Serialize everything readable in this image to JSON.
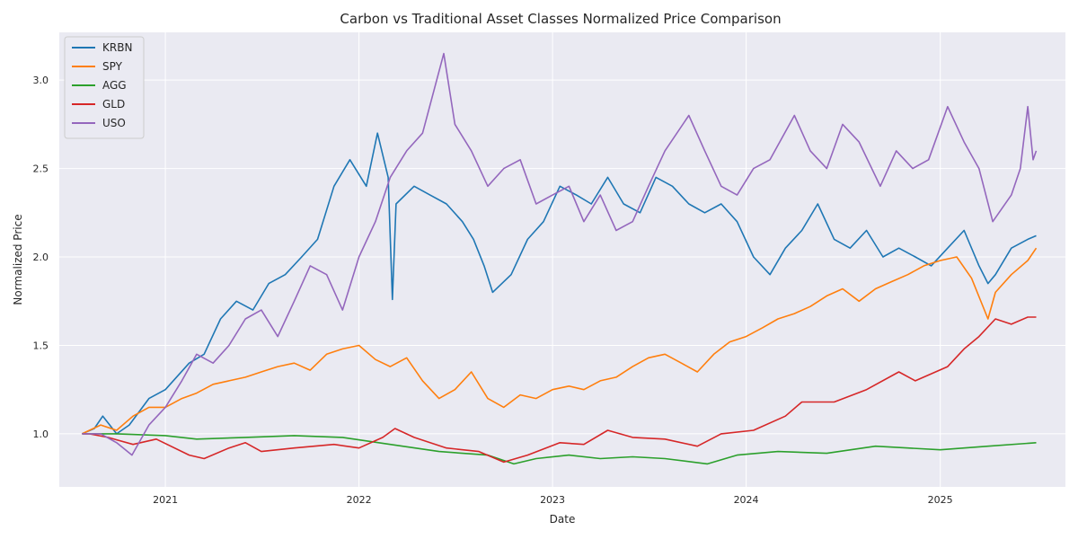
{
  "chart_data": {
    "type": "line",
    "title": "Carbon vs Traditional Asset Classes Normalized Price Comparison",
    "xlabel": "Date",
    "ylabel": "Normalized Price",
    "x_ticks": [
      "2021",
      "2022",
      "2023",
      "2024",
      "2025"
    ],
    "y_ticks": [
      "1.0",
      "1.5",
      "2.0",
      "2.5",
      "3.0"
    ],
    "xlim": [
      "2020-06-15",
      "2025-08-25"
    ],
    "ylim": [
      0.7,
      3.27
    ],
    "grid": true,
    "legend_position": "top-left",
    "series": [
      {
        "name": "KRBN",
        "color": "#1f77b4",
        "points": [
          [
            "2020-07-28",
            1.0
          ],
          [
            "2020-08-20",
            1.03
          ],
          [
            "2020-09-05",
            1.1
          ],
          [
            "2020-10-01",
            1.0
          ],
          [
            "2020-10-25",
            1.05
          ],
          [
            "2020-12-01",
            1.2
          ],
          [
            "2021-01-01",
            1.25
          ],
          [
            "2021-02-15",
            1.4
          ],
          [
            "2021-03-15",
            1.45
          ],
          [
            "2021-04-15",
            1.65
          ],
          [
            "2021-05-15",
            1.75
          ],
          [
            "2021-06-15",
            1.7
          ],
          [
            "2021-07-15",
            1.85
          ],
          [
            "2021-08-15",
            1.9
          ],
          [
            "2021-09-15",
            2.0
          ],
          [
            "2021-10-15",
            2.1
          ],
          [
            "2021-11-15",
            2.4
          ],
          [
            "2021-12-15",
            2.55
          ],
          [
            "2022-01-15",
            2.4
          ],
          [
            "2022-02-05",
            2.7
          ],
          [
            "2022-02-25",
            2.45
          ],
          [
            "2022-03-05",
            1.76
          ],
          [
            "2022-03-12",
            2.3
          ],
          [
            "2022-04-15",
            2.4
          ],
          [
            "2022-05-15",
            2.35
          ],
          [
            "2022-06-15",
            2.3
          ],
          [
            "2022-07-15",
            2.2
          ],
          [
            "2022-08-05",
            2.1
          ],
          [
            "2022-08-25",
            1.95
          ],
          [
            "2022-09-10",
            1.8
          ],
          [
            "2022-10-15",
            1.9
          ],
          [
            "2022-11-15",
            2.1
          ],
          [
            "2022-12-15",
            2.2
          ],
          [
            "2023-01-15",
            2.4
          ],
          [
            "2023-02-15",
            2.35
          ],
          [
            "2023-03-15",
            2.3
          ],
          [
            "2023-04-15",
            2.45
          ],
          [
            "2023-05-15",
            2.3
          ],
          [
            "2023-06-15",
            2.25
          ],
          [
            "2023-07-15",
            2.45
          ],
          [
            "2023-08-15",
            2.4
          ],
          [
            "2023-09-15",
            2.3
          ],
          [
            "2023-10-15",
            2.25
          ],
          [
            "2023-11-15",
            2.3
          ],
          [
            "2023-12-15",
            2.2
          ],
          [
            "2024-01-15",
            2.0
          ],
          [
            "2024-02-15",
            1.9
          ],
          [
            "2024-03-15",
            2.05
          ],
          [
            "2024-04-15",
            2.15
          ],
          [
            "2024-05-15",
            2.3
          ],
          [
            "2024-06-15",
            2.1
          ],
          [
            "2024-07-15",
            2.05
          ],
          [
            "2024-08-15",
            2.15
          ],
          [
            "2024-09-15",
            2.0
          ],
          [
            "2024-10-15",
            2.05
          ],
          [
            "2024-11-15",
            2.0
          ],
          [
            "2024-12-15",
            1.95
          ],
          [
            "2025-01-15",
            2.05
          ],
          [
            "2025-02-15",
            2.15
          ],
          [
            "2025-03-15",
            1.95
          ],
          [
            "2025-04-01",
            1.85
          ],
          [
            "2025-04-15",
            1.9
          ],
          [
            "2025-05-15",
            2.05
          ],
          [
            "2025-06-15",
            2.1
          ],
          [
            "2025-07-01",
            2.12
          ]
        ]
      },
      {
        "name": "SPY",
        "color": "#ff7f0e",
        "points": [
          [
            "2020-07-28",
            1.0
          ],
          [
            "2020-09-01",
            1.05
          ],
          [
            "2020-10-01",
            1.02
          ],
          [
            "2020-11-01",
            1.1
          ],
          [
            "2020-12-01",
            1.15
          ],
          [
            "2021-01-01",
            1.15
          ],
          [
            "2021-02-01",
            1.2
          ],
          [
            "2021-03-01",
            1.23
          ],
          [
            "2021-04-01",
            1.28
          ],
          [
            "2021-05-01",
            1.3
          ],
          [
            "2021-06-01",
            1.32
          ],
          [
            "2021-07-01",
            1.35
          ],
          [
            "2021-08-01",
            1.38
          ],
          [
            "2021-09-01",
            1.4
          ],
          [
            "2021-10-01",
            1.36
          ],
          [
            "2021-11-01",
            1.45
          ],
          [
            "2021-12-01",
            1.48
          ],
          [
            "2022-01-01",
            1.5
          ],
          [
            "2022-02-01",
            1.42
          ],
          [
            "2022-03-01",
            1.38
          ],
          [
            "2022-04-01",
            1.43
          ],
          [
            "2022-05-01",
            1.3
          ],
          [
            "2022-06-01",
            1.2
          ],
          [
            "2022-07-01",
            1.25
          ],
          [
            "2022-08-01",
            1.35
          ],
          [
            "2022-09-01",
            1.2
          ],
          [
            "2022-10-01",
            1.15
          ],
          [
            "2022-11-01",
            1.22
          ],
          [
            "2022-12-01",
            1.2
          ],
          [
            "2023-01-01",
            1.25
          ],
          [
            "2023-02-01",
            1.27
          ],
          [
            "2023-03-01",
            1.25
          ],
          [
            "2023-04-01",
            1.3
          ],
          [
            "2023-05-01",
            1.32
          ],
          [
            "2023-06-01",
            1.38
          ],
          [
            "2023-07-01",
            1.43
          ],
          [
            "2023-08-01",
            1.45
          ],
          [
            "2023-09-01",
            1.4
          ],
          [
            "2023-10-01",
            1.35
          ],
          [
            "2023-11-01",
            1.45
          ],
          [
            "2023-12-01",
            1.52
          ],
          [
            "2024-01-01",
            1.55
          ],
          [
            "2024-02-01",
            1.6
          ],
          [
            "2024-03-01",
            1.65
          ],
          [
            "2024-04-01",
            1.68
          ],
          [
            "2024-05-01",
            1.72
          ],
          [
            "2024-06-01",
            1.78
          ],
          [
            "2024-07-01",
            1.82
          ],
          [
            "2024-08-01",
            1.75
          ],
          [
            "2024-09-01",
            1.82
          ],
          [
            "2024-10-01",
            1.86
          ],
          [
            "2024-11-01",
            1.9
          ],
          [
            "2024-12-01",
            1.95
          ],
          [
            "2025-01-01",
            1.98
          ],
          [
            "2025-02-01",
            2.0
          ],
          [
            "2025-03-01",
            1.88
          ],
          [
            "2025-04-01",
            1.65
          ],
          [
            "2025-04-15",
            1.8
          ],
          [
            "2025-05-15",
            1.9
          ],
          [
            "2025-06-15",
            1.98
          ],
          [
            "2025-07-01",
            2.05
          ]
        ]
      },
      {
        "name": "AGG",
        "color": "#2ca02c",
        "points": [
          [
            "2020-07-28",
            1.0
          ],
          [
            "2020-10-01",
            1.0
          ],
          [
            "2021-01-01",
            0.99
          ],
          [
            "2021-03-01",
            0.97
          ],
          [
            "2021-06-01",
            0.98
          ],
          [
            "2021-09-01",
            0.99
          ],
          [
            "2021-12-01",
            0.98
          ],
          [
            "2022-03-01",
            0.94
          ],
          [
            "2022-06-01",
            0.9
          ],
          [
            "2022-09-01",
            0.88
          ],
          [
            "2022-10-20",
            0.83
          ],
          [
            "2022-12-01",
            0.86
          ],
          [
            "2023-02-01",
            0.88
          ],
          [
            "2023-04-01",
            0.86
          ],
          [
            "2023-06-01",
            0.87
          ],
          [
            "2023-08-01",
            0.86
          ],
          [
            "2023-10-20",
            0.83
          ],
          [
            "2023-12-15",
            0.88
          ],
          [
            "2024-03-01",
            0.9
          ],
          [
            "2024-06-01",
            0.89
          ],
          [
            "2024-09-01",
            0.93
          ],
          [
            "2024-11-01",
            0.92
          ],
          [
            "2025-01-01",
            0.91
          ],
          [
            "2025-04-01",
            0.93
          ],
          [
            "2025-07-01",
            0.95
          ]
        ]
      },
      {
        "name": "GLD",
        "color": "#d62728",
        "points": [
          [
            "2020-07-28",
            1.0
          ],
          [
            "2020-08-10",
            1.0
          ],
          [
            "2020-09-15",
            0.98
          ],
          [
            "2020-11-01",
            0.94
          ],
          [
            "2020-12-15",
            0.97
          ],
          [
            "2021-02-15",
            0.88
          ],
          [
            "2021-03-15",
            0.86
          ],
          [
            "2021-05-01",
            0.92
          ],
          [
            "2021-06-01",
            0.95
          ],
          [
            "2021-07-01",
            0.9
          ],
          [
            "2021-09-01",
            0.92
          ],
          [
            "2021-11-15",
            0.94
          ],
          [
            "2022-01-01",
            0.92
          ],
          [
            "2022-02-15",
            0.98
          ],
          [
            "2022-03-10",
            1.03
          ],
          [
            "2022-04-15",
            0.98
          ],
          [
            "2022-06-15",
            0.92
          ],
          [
            "2022-08-15",
            0.9
          ],
          [
            "2022-10-01",
            0.84
          ],
          [
            "2022-11-15",
            0.88
          ],
          [
            "2023-01-15",
            0.95
          ],
          [
            "2023-03-01",
            0.94
          ],
          [
            "2023-04-15",
            1.02
          ],
          [
            "2023-06-01",
            0.98
          ],
          [
            "2023-08-01",
            0.97
          ],
          [
            "2023-10-01",
            0.93
          ],
          [
            "2023-11-15",
            1.0
          ],
          [
            "2024-01-15",
            1.02
          ],
          [
            "2024-03-15",
            1.1
          ],
          [
            "2024-04-15",
            1.18
          ],
          [
            "2024-06-15",
            1.18
          ],
          [
            "2024-08-15",
            1.25
          ],
          [
            "2024-10-15",
            1.35
          ],
          [
            "2024-11-15",
            1.3
          ],
          [
            "2025-01-15",
            1.38
          ],
          [
            "2025-02-15",
            1.48
          ],
          [
            "2025-03-15",
            1.55
          ],
          [
            "2025-04-15",
            1.65
          ],
          [
            "2025-05-15",
            1.62
          ],
          [
            "2025-06-15",
            1.66
          ],
          [
            "2025-07-01",
            1.66
          ]
        ]
      },
      {
        "name": "USO",
        "color": "#9467bd",
        "points": [
          [
            "2020-07-28",
            1.0
          ],
          [
            "2020-09-01",
            1.0
          ],
          [
            "2020-10-01",
            0.95
          ],
          [
            "2020-10-30",
            0.88
          ],
          [
            "2020-12-01",
            1.05
          ],
          [
            "2021-01-01",
            1.15
          ],
          [
            "2021-02-01",
            1.3
          ],
          [
            "2021-03-01",
            1.45
          ],
          [
            "2021-04-01",
            1.4
          ],
          [
            "2021-05-01",
            1.5
          ],
          [
            "2021-06-01",
            1.65
          ],
          [
            "2021-07-01",
            1.7
          ],
          [
            "2021-08-01",
            1.55
          ],
          [
            "2021-09-01",
            1.75
          ],
          [
            "2021-10-01",
            1.95
          ],
          [
            "2021-11-01",
            1.9
          ],
          [
            "2021-12-01",
            1.7
          ],
          [
            "2022-01-01",
            2.0
          ],
          [
            "2022-02-01",
            2.2
          ],
          [
            "2022-03-01",
            2.45
          ],
          [
            "2022-04-01",
            2.6
          ],
          [
            "2022-05-01",
            2.7
          ],
          [
            "2022-06-10",
            3.15
          ],
          [
            "2022-07-01",
            2.75
          ],
          [
            "2022-08-01",
            2.6
          ],
          [
            "2022-09-01",
            2.4
          ],
          [
            "2022-10-01",
            2.5
          ],
          [
            "2022-11-01",
            2.55
          ],
          [
            "2022-12-01",
            2.3
          ],
          [
            "2023-01-01",
            2.35
          ],
          [
            "2023-02-01",
            2.4
          ],
          [
            "2023-03-01",
            2.2
          ],
          [
            "2023-04-01",
            2.35
          ],
          [
            "2023-05-01",
            2.15
          ],
          [
            "2023-06-01",
            2.2
          ],
          [
            "2023-07-01",
            2.4
          ],
          [
            "2023-08-01",
            2.6
          ],
          [
            "2023-09-15",
            2.8
          ],
          [
            "2023-10-15",
            2.6
          ],
          [
            "2023-11-15",
            2.4
          ],
          [
            "2023-12-15",
            2.35
          ],
          [
            "2024-01-15",
            2.5
          ],
          [
            "2024-02-15",
            2.55
          ],
          [
            "2024-04-01",
            2.8
          ],
          [
            "2024-05-01",
            2.6
          ],
          [
            "2024-06-01",
            2.5
          ],
          [
            "2024-07-01",
            2.75
          ],
          [
            "2024-08-01",
            2.65
          ],
          [
            "2024-09-10",
            2.4
          ],
          [
            "2024-10-10",
            2.6
          ],
          [
            "2024-11-10",
            2.5
          ],
          [
            "2024-12-10",
            2.55
          ],
          [
            "2025-01-15",
            2.85
          ],
          [
            "2025-02-15",
            2.65
          ],
          [
            "2025-03-15",
            2.5
          ],
          [
            "2025-04-10",
            2.2
          ],
          [
            "2025-05-15",
            2.35
          ],
          [
            "2025-06-01",
            2.5
          ],
          [
            "2025-06-15",
            2.85
          ],
          [
            "2025-06-25",
            2.55
          ],
          [
            "2025-07-01",
            2.6
          ]
        ]
      }
    ]
  }
}
